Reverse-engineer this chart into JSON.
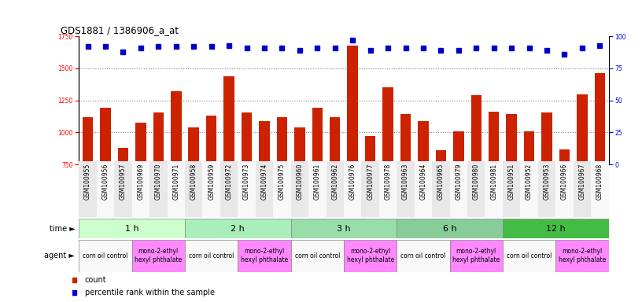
{
  "title": "GDS1881 / 1386906_a_at",
  "samples": [
    "GSM100955",
    "GSM100956",
    "GSM100957",
    "GSM100969",
    "GSM100970",
    "GSM100971",
    "GSM100958",
    "GSM100959",
    "GSM100972",
    "GSM100973",
    "GSM100974",
    "GSM100975",
    "GSM100960",
    "GSM100961",
    "GSM100962",
    "GSM100976",
    "GSM100977",
    "GSM100978",
    "GSM100963",
    "GSM100964",
    "GSM100965",
    "GSM100979",
    "GSM100980",
    "GSM100981",
    "GSM100951",
    "GSM100952",
    "GSM100953",
    "GSM100966",
    "GSM100967",
    "GSM100968"
  ],
  "counts": [
    1120,
    1195,
    880,
    1075,
    1155,
    1320,
    1040,
    1130,
    1435,
    1155,
    1090,
    1120,
    1040,
    1190,
    1120,
    1680,
    975,
    1350,
    1145,
    1090,
    860,
    1010,
    1290,
    1165,
    1145,
    1010,
    1155,
    870,
    1295,
    1460
  ],
  "percentiles": [
    92,
    92,
    88,
    91,
    92,
    92,
    92,
    92,
    93,
    91,
    91,
    91,
    89,
    91,
    91,
    97,
    89,
    91,
    91,
    91,
    89,
    89,
    91,
    91,
    91,
    91,
    89,
    86,
    91,
    93
  ],
  "time_groups": [
    {
      "label": "1 h",
      "start": 0,
      "end": 6
    },
    {
      "label": "2 h",
      "start": 6,
      "end": 12
    },
    {
      "label": "3 h",
      "start": 12,
      "end": 18
    },
    {
      "label": "6 h",
      "start": 18,
      "end": 24
    },
    {
      "label": "12 h",
      "start": 24,
      "end": 30
    }
  ],
  "agent_groups": [
    {
      "label": "corn oil control",
      "start": 0,
      "end": 3,
      "color": "#f8f8f8"
    },
    {
      "label": "mono-2-ethyl\nhexyl phthalate",
      "start": 3,
      "end": 6,
      "color": "#ff88ff"
    },
    {
      "label": "corn oil control",
      "start": 6,
      "end": 9,
      "color": "#f8f8f8"
    },
    {
      "label": "mono-2-ethyl\nhexyl phthalate",
      "start": 9,
      "end": 12,
      "color": "#ff88ff"
    },
    {
      "label": "corn oil control",
      "start": 12,
      "end": 15,
      "color": "#f8f8f8"
    },
    {
      "label": "mono-2-ethyl\nhexyl phthalate",
      "start": 15,
      "end": 18,
      "color": "#ff88ff"
    },
    {
      "label": "corn oil control",
      "start": 18,
      "end": 21,
      "color": "#f8f8f8"
    },
    {
      "label": "mono-2-ethyl\nhexyl phthalate",
      "start": 21,
      "end": 24,
      "color": "#ff88ff"
    },
    {
      "label": "corn oil control",
      "start": 24,
      "end": 27,
      "color": "#f8f8f8"
    },
    {
      "label": "mono-2-ethyl\nhexyl phthalate",
      "start": 27,
      "end": 30,
      "color": "#ff88ff"
    }
  ],
  "time_colors": [
    "#ccffcc",
    "#aaeebb",
    "#99ddaa",
    "#88cc99",
    "#44bb44"
  ],
  "bar_color": "#cc2200",
  "dot_color": "#0000cc",
  "ylim_left": [
    750,
    1750
  ],
  "ylim_right": [
    0,
    100
  ],
  "yticks_left": [
    750,
    1000,
    1250,
    1500,
    1750
  ],
  "yticks_right": [
    0,
    25,
    50,
    75,
    100
  ],
  "grid_values": [
    1000,
    1250,
    1500
  ],
  "bar_width": 0.6,
  "label_fontsize": 7,
  "tick_label_fontsize": 5.5
}
